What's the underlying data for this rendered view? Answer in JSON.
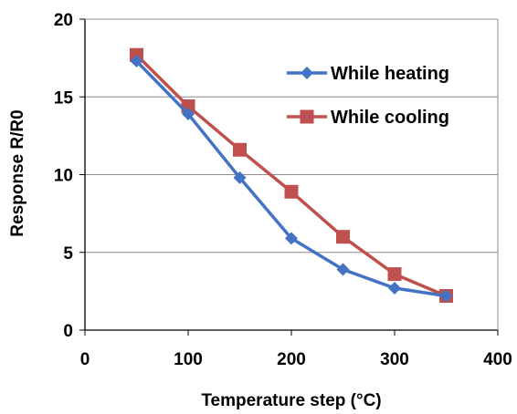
{
  "chart_data": {
    "type": "line",
    "title": "",
    "xlabel": "Temperature step (°C)",
    "ylabel": "Response R/R0",
    "xlim": [
      0,
      400
    ],
    "ylim": [
      0,
      20
    ],
    "x_ticks": [
      "0",
      "100",
      "200",
      "300",
      "400"
    ],
    "y_ticks": [
      "0",
      "5",
      "10",
      "15",
      "20"
    ],
    "grid": "horizontal",
    "legend_position": "top-right",
    "x": [
      50,
      100,
      150,
      200,
      250,
      300,
      350
    ],
    "series": [
      {
        "name": "While heating",
        "color": "#4472C4",
        "marker": "diamond",
        "values": [
          17.3,
          13.9,
          9.8,
          5.9,
          3.9,
          2.7,
          2.2
        ]
      },
      {
        "name": "While cooling",
        "color": "#C0504D",
        "marker": "square",
        "values": [
          17.7,
          14.4,
          11.6,
          8.9,
          6.0,
          3.6,
          2.2
        ]
      }
    ]
  }
}
